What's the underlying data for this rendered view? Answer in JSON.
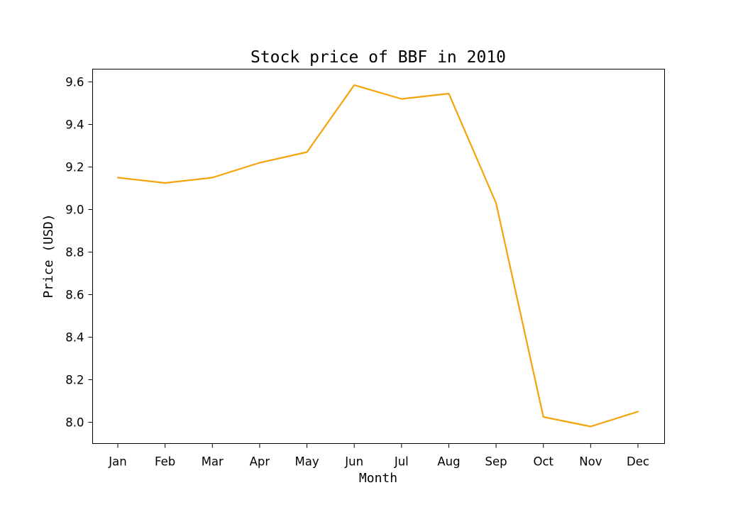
{
  "chart_data": {
    "type": "line",
    "title": "Stock price of BBF in 2010",
    "xlabel": "Month",
    "ylabel": "Price (USD)",
    "categories": [
      "Jan",
      "Feb",
      "Mar",
      "Apr",
      "May",
      "Jun",
      "Jul",
      "Aug",
      "Sep",
      "Oct",
      "Nov",
      "Dec"
    ],
    "series": [
      {
        "values": [
          9.15,
          9.125,
          9.15,
          9.22,
          9.27,
          9.585,
          9.52,
          9.545,
          9.03,
          8.025,
          7.98,
          8.05
        ],
        "color": "#f5a30a"
      }
    ],
    "ylim": [
      7.9,
      9.66
    ],
    "yticks": [
      8.0,
      8.2,
      8.4,
      8.6,
      8.8,
      9.0,
      9.2,
      9.4,
      9.6
    ],
    "grid": false,
    "legend": "none"
  }
}
